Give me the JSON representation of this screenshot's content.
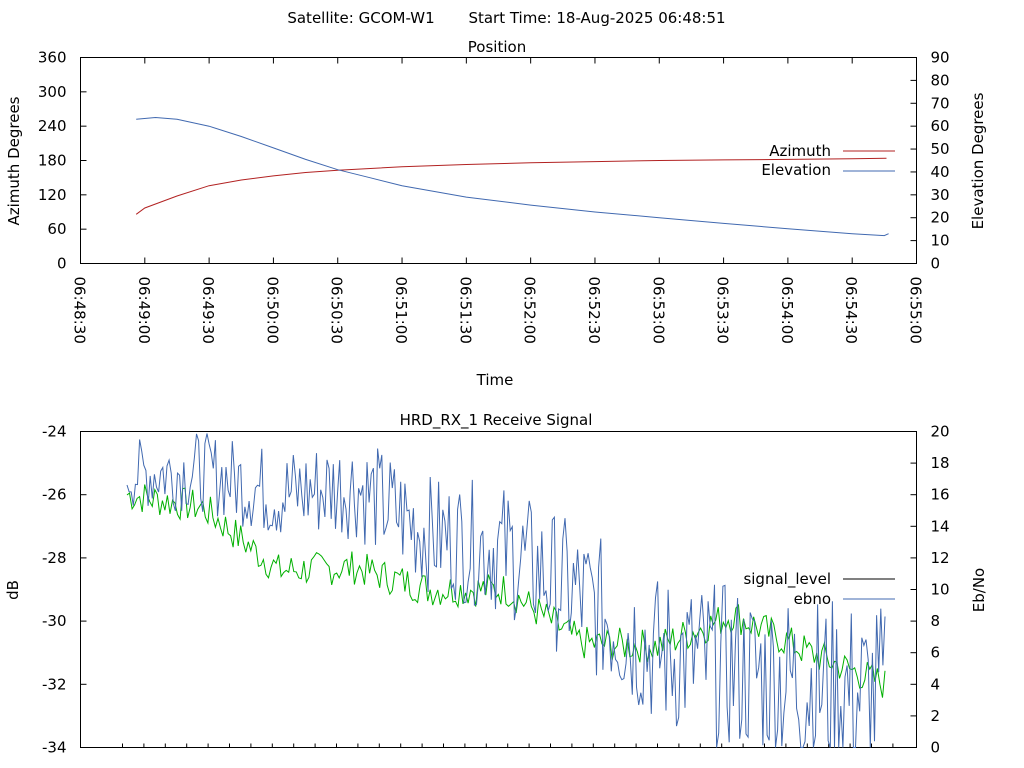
{
  "header": {
    "satellite": "Satellite: GCOM-W1",
    "start_time": "Start Time: 18-Aug-2025 06:48:51"
  },
  "chart_data": [
    {
      "type": "line",
      "title": "Position",
      "xlabel": "Time",
      "ylabel": "Azimuth Degrees",
      "y2label": "Elevation Degrees",
      "xlim": [
        "06:48:30",
        "06:55:00"
      ],
      "ylim": [
        0,
        360
      ],
      "y2lim": [
        0,
        90
      ],
      "x_ticks": [
        "06:48:30",
        "06:49:00",
        "06:49:30",
        "06:50:00",
        "06:50:30",
        "06:51:00",
        "06:51:30",
        "06:52:00",
        "06:52:30",
        "06:53:00",
        "06:53:30",
        "06:54:00",
        "06:54:30",
        "06:55:00"
      ],
      "y_ticks": [
        0,
        60,
        120,
        180,
        240,
        300,
        360
      ],
      "y2_ticks": [
        0,
        10,
        20,
        30,
        40,
        50,
        60,
        70,
        80,
        90
      ],
      "legend": "right",
      "grid": false,
      "series": [
        {
          "name": "Azimuth",
          "axis": "left",
          "color": "#b22222",
          "x": [
            "06:48:56",
            "06:49:00",
            "06:49:15",
            "06:49:30",
            "06:49:45",
            "06:50:00",
            "06:50:15",
            "06:50:30",
            "06:51:00",
            "06:51:30",
            "06:52:00",
            "06:52:30",
            "06:53:00",
            "06:53:30",
            "06:54:00",
            "06:54:30",
            "06:54:46"
          ],
          "y": [
            86,
            97,
            118,
            136,
            146,
            153,
            159,
            163,
            169,
            173,
            176,
            178,
            180,
            181,
            182,
            183,
            184
          ]
        },
        {
          "name": "Elevation",
          "axis": "right",
          "color": "#4169b0",
          "x": [
            "06:48:56",
            "06:49:05",
            "06:49:15",
            "06:49:30",
            "06:49:45",
            "06:50:00",
            "06:50:15",
            "06:50:30",
            "06:50:45",
            "06:51:00",
            "06:51:30",
            "06:52:00",
            "06:52:30",
            "06:53:00",
            "06:53:30",
            "06:54:00",
            "06:54:30",
            "06:54:45",
            "06:54:47"
          ],
          "y": [
            63,
            63.8,
            63,
            60,
            55.5,
            50.5,
            45.5,
            41,
            37.5,
            34,
            29,
            25.5,
            22.5,
            20,
            17.5,
            15.2,
            13,
            12.2,
            13
          ]
        }
      ]
    },
    {
      "type": "line",
      "title": "HRD_RX_1 Receive Signal",
      "ylabel": "dB",
      "y2label": "Eb/No",
      "ylim": [
        -34,
        -24
      ],
      "y2lim": [
        0,
        20
      ],
      "y_ticks": [
        -34,
        -32,
        -30,
        -28,
        -26,
        -24
      ],
      "y2_ticks": [
        0,
        2,
        4,
        6,
        8,
        10,
        12,
        14,
        16,
        18,
        20
      ],
      "legend": "right",
      "grid": false,
      "series": [
        {
          "name": "signal_level",
          "axis": "left",
          "color": "#000000",
          "approximate": true,
          "x": [
            0,
            0.1,
            0.2,
            0.3,
            0.4,
            0.5,
            0.6,
            0.7,
            0.8,
            0.9,
            1.0
          ],
          "y": [
            -26.0,
            -26.5,
            -27.8,
            -28.4,
            -28.6,
            -29.2,
            -30.3,
            -30.4,
            -30.7,
            -31.4,
            -31.4
          ]
        },
        {
          "name": "ebno",
          "axis": "right",
          "color": "#4169b0",
          "approximate": true,
          "x": [
            0,
            0.1,
            0.2,
            0.3,
            0.4,
            0.5,
            0.6,
            0.7,
            0.8,
            0.9,
            1.0
          ],
          "y": [
            17.3,
            17.5,
            16.0,
            16.6,
            13.5,
            12.5,
            9.5,
            6.0,
            5.0,
            4.0,
            3.0
          ]
        },
        {
          "color": "#00b000",
          "axis": "left",
          "approximate": true,
          "x": [
            0,
            0.1,
            0.2,
            0.3,
            0.4,
            0.5,
            0.6,
            0.7,
            0.8,
            0.9,
            1.0
          ],
          "y": [
            -26.0,
            -26.4,
            -28.4,
            -28.3,
            -29.0,
            -29.0,
            -30.7,
            -30.8,
            -29.8,
            -31.0,
            -32.0
          ]
        }
      ]
    }
  ]
}
